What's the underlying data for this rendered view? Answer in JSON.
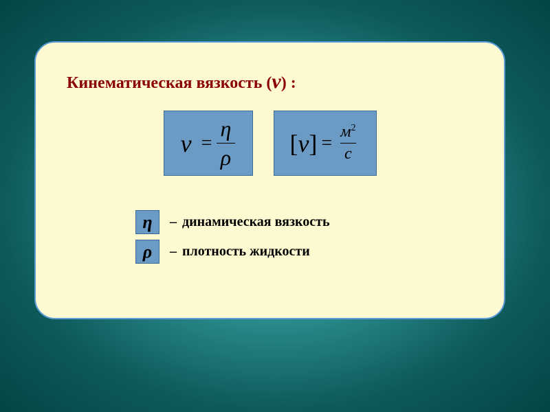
{
  "card": {
    "background_color": "#fdf9d0",
    "border_color": "#5b9bd5",
    "border_radius": 30
  },
  "title": {
    "text": "Кинематическая вязкость",
    "symbol": "ν",
    "color": "#8b0000",
    "fontsize": 24
  },
  "formula1": {
    "lhs": "ν",
    "numerator": "η",
    "denominator": "ρ",
    "box_color": "#6b9ac4"
  },
  "formula2": {
    "lhs_open": "[",
    "lhs_sym": "ν",
    "lhs_close": "]",
    "numerator_base": "м",
    "numerator_exp": "2",
    "denominator": "с",
    "box_color": "#6b9ac4"
  },
  "definitions": [
    {
      "symbol": "η",
      "text": "динамическая вязкость"
    },
    {
      "symbol": "ρ",
      "text": "плотность жидкости"
    }
  ],
  "background": {
    "gradient_inner": "#6db6b6",
    "gradient_outer": "#044545"
  }
}
